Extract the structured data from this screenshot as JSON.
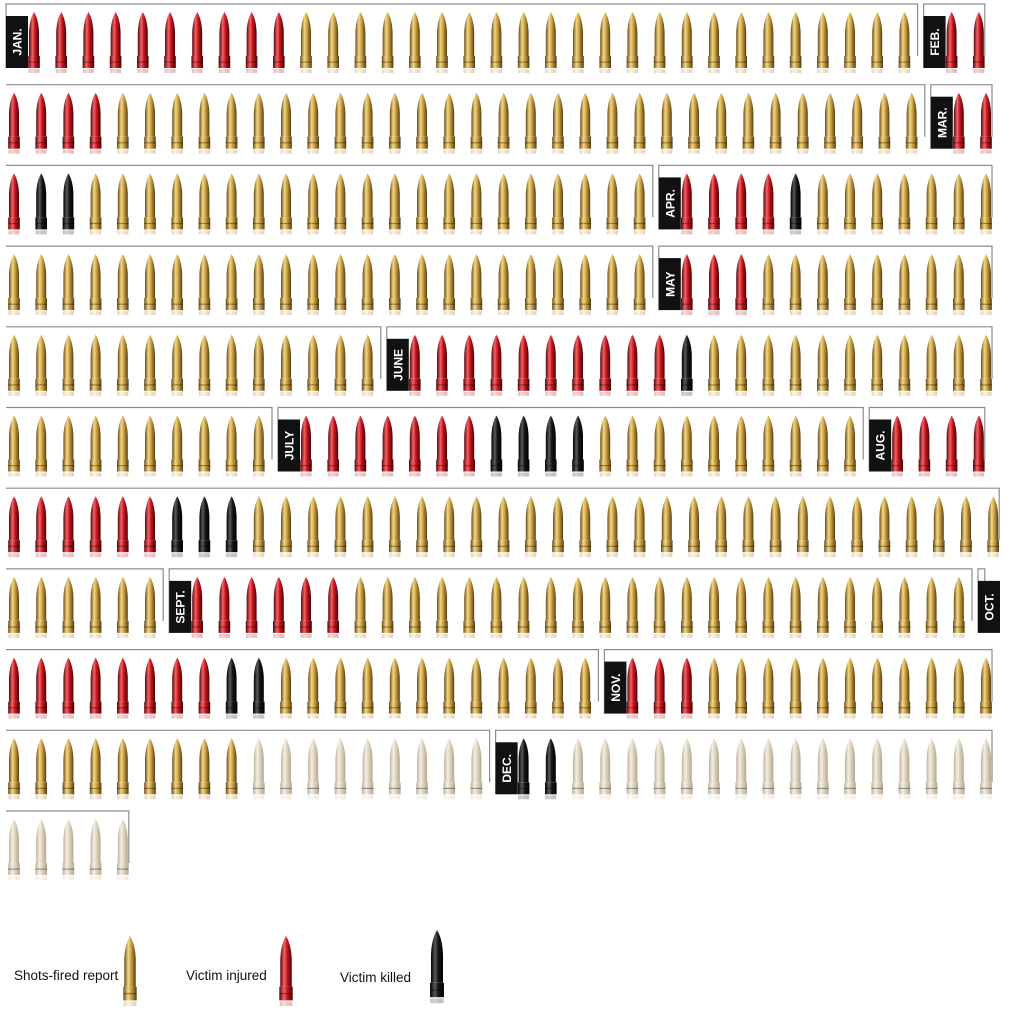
{
  "chart_data": {
    "type": "pictogram",
    "title": "",
    "legend": [
      {
        "key": "shots_fired",
        "label": "Shots-fired report",
        "color": "#c9a043"
      },
      {
        "key": "injured",
        "label": "Victim injured",
        "color": "#c4161c"
      },
      {
        "key": "killed",
        "label": "Victim killed",
        "color": "#111111"
      }
    ],
    "months": [
      {
        "label": "JAN.",
        "injured": 10,
        "killed": 0,
        "shots_fired": 23,
        "faded": 0
      },
      {
        "label": "FEB.",
        "injured": 6,
        "killed": 0,
        "shots_fired": 30,
        "faded": 0
      },
      {
        "label": "MAR.",
        "injured": 3,
        "killed": 2,
        "shots_fired": 21,
        "faded": 0
      },
      {
        "label": "APR.",
        "injured": 4,
        "killed": 1,
        "shots_fired": 31,
        "faded": 0
      },
      {
        "label": "MAY",
        "injured": 3,
        "killed": 0,
        "shots_fired": 23,
        "faded": 0
      },
      {
        "label": "JUNE",
        "injured": 10,
        "killed": 1,
        "shots_fired": 21,
        "faded": 0
      },
      {
        "label": "JULY",
        "injured": 7,
        "killed": 4,
        "shots_fired": 10,
        "faded": 0
      },
      {
        "label": "AUG.",
        "injured": 10,
        "killed": 3,
        "shots_fired": 34,
        "faded": 0
      },
      {
        "label": "SEPT.",
        "injured": 6,
        "killed": 0,
        "shots_fired": 23,
        "faded": 0
      },
      {
        "label": "OCT.",
        "injured": 8,
        "killed": 2,
        "shots_fired": 12,
        "faded": 0
      },
      {
        "label": "NOV.",
        "injured": 3,
        "killed": 0,
        "shots_fired": 20,
        "faded": 9
      },
      {
        "label": "DEC.",
        "injured": 0,
        "killed": 2,
        "shots_fired": 0,
        "faded": 21
      }
    ]
  }
}
